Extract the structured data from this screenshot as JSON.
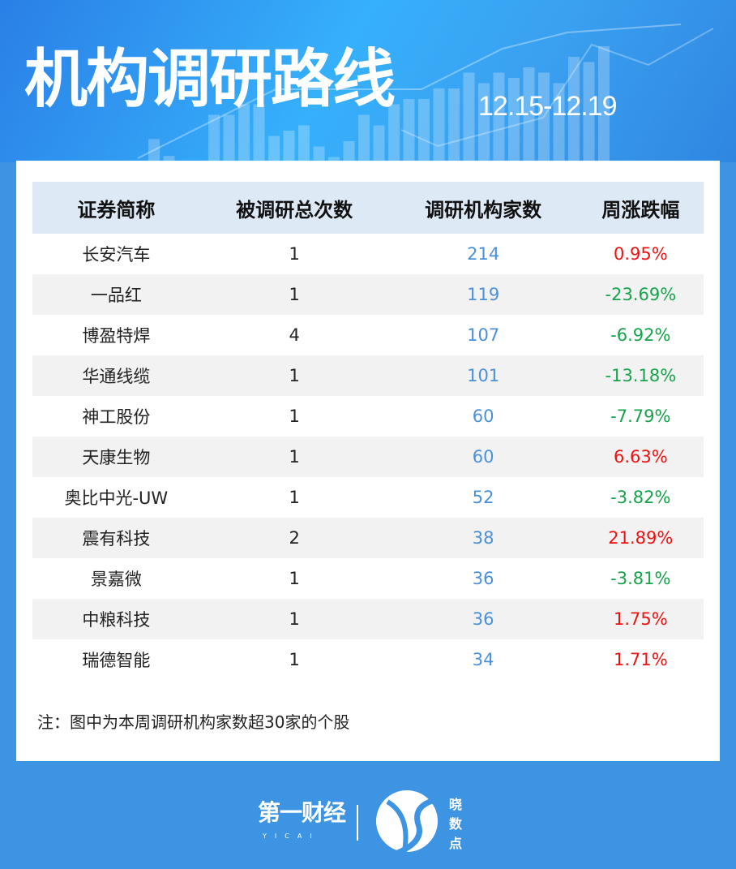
{
  "header": {
    "title": "机构调研路线",
    "date_range": "12.15-12.19"
  },
  "table": {
    "columns": [
      "证券简称",
      "被调研总次数",
      "调研机构家数",
      "周涨跌幅"
    ],
    "rows": [
      {
        "name": "长安汽车",
        "times": "1",
        "institutions": "214",
        "change": "0.95%",
        "dir": "up"
      },
      {
        "name": "一品红",
        "times": "1",
        "institutions": "119",
        "change": "-23.69%",
        "dir": "down"
      },
      {
        "name": "博盈特焊",
        "times": "4",
        "institutions": "107",
        "change": "-6.92%",
        "dir": "down"
      },
      {
        "name": "华通线缆",
        "times": "1",
        "institutions": "101",
        "change": "-13.18%",
        "dir": "down"
      },
      {
        "name": "神工股份",
        "times": "1",
        "institutions": "60",
        "change": "-7.79%",
        "dir": "down"
      },
      {
        "name": "天康生物",
        "times": "1",
        "institutions": "60",
        "change": "6.63%",
        "dir": "up"
      },
      {
        "name": "奥比中光-UW",
        "times": "1",
        "institutions": "52",
        "change": "-3.82%",
        "dir": "down"
      },
      {
        "name": "震有科技",
        "times": "2",
        "institutions": "38",
        "change": "21.89%",
        "dir": "up"
      },
      {
        "name": "景嘉微",
        "times": "1",
        "institutions": "36",
        "change": "-3.81%",
        "dir": "down"
      },
      {
        "name": "中粮科技",
        "times": "1",
        "institutions": "36",
        "change": "1.75%",
        "dir": "up"
      },
      {
        "name": "瑞德智能",
        "times": "1",
        "institutions": "34",
        "change": "1.71%",
        "dir": "up"
      }
    ]
  },
  "note": "注：图中为本周调研机构家数超30家的个股",
  "footer": {
    "brand": "第一财经",
    "brand_sub": "YICAI",
    "product": "晓数点"
  },
  "colors": {
    "up": "#ee1111",
    "down": "#16a34a",
    "institutions": "#4a90d9",
    "background": "#3d94e2"
  }
}
